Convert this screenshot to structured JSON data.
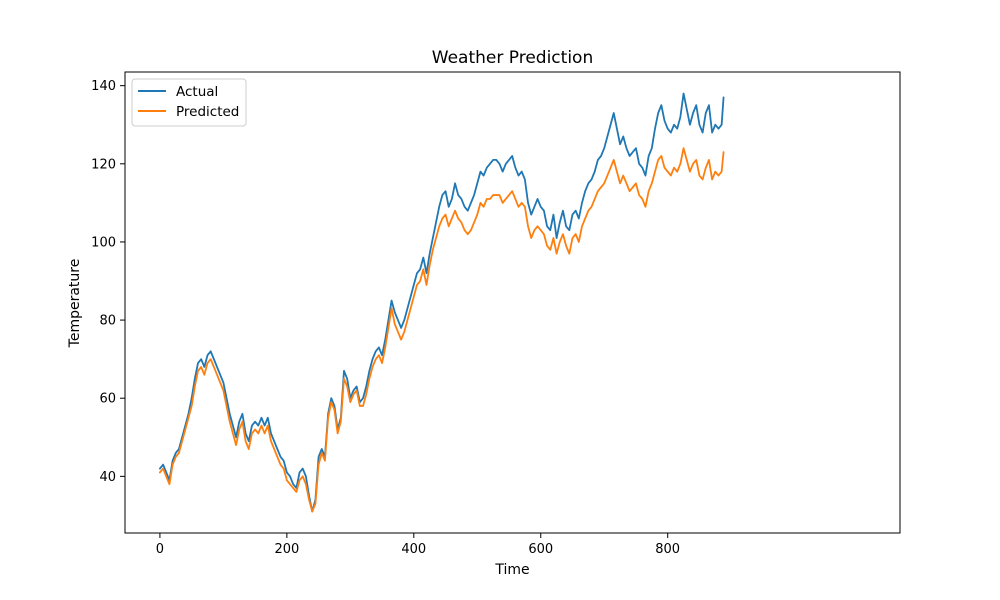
{
  "chart_data": {
    "type": "line",
    "title": "Weather Prediction",
    "xlabel": "Time",
    "ylabel": "Temperature",
    "xlim": [
      -55,
      1166
    ],
    "ylim": [
      25.5,
      143.5
    ],
    "xticks": [
      0,
      200,
      400,
      600,
      800
    ],
    "yticks": [
      40,
      60,
      80,
      100,
      120,
      140
    ],
    "grid": false,
    "legend_position": "top-left",
    "series": [
      {
        "name": "Actual",
        "color": "#1f77b4",
        "x": [
          0,
          5,
          10,
          15,
          20,
          25,
          30,
          35,
          40,
          45,
          50,
          55,
          60,
          65,
          70,
          75,
          80,
          85,
          90,
          95,
          100,
          105,
          110,
          115,
          120,
          125,
          130,
          135,
          140,
          145,
          150,
          155,
          160,
          165,
          170,
          175,
          180,
          185,
          190,
          195,
          200,
          205,
          210,
          215,
          220,
          225,
          230,
          235,
          240,
          245,
          250,
          255,
          260,
          265,
          270,
          275,
          280,
          285,
          290,
          295,
          300,
          305,
          310,
          315,
          320,
          325,
          330,
          335,
          340,
          345,
          350,
          355,
          360,
          365,
          370,
          375,
          380,
          385,
          390,
          395,
          400,
          405,
          410,
          415,
          420,
          425,
          430,
          435,
          440,
          445,
          450,
          455,
          460,
          465,
          470,
          475,
          480,
          485,
          490,
          495,
          500,
          505,
          510,
          515,
          520,
          525,
          530,
          535,
          540,
          545,
          550,
          555,
          560,
          565,
          570,
          575,
          580,
          585,
          590,
          595,
          600,
          605,
          610,
          615,
          620,
          625,
          630,
          635,
          640,
          645,
          650,
          655,
          660,
          665,
          670,
          675,
          680,
          685,
          690,
          695,
          700,
          705,
          710,
          715,
          720,
          725,
          730,
          735,
          740,
          745,
          750,
          755,
          760,
          765,
          770,
          775,
          780,
          785,
          790,
          795,
          800,
          805,
          810,
          815,
          820,
          825,
          830,
          835,
          840,
          845,
          850,
          855,
          860,
          865,
          870,
          875,
          880,
          885,
          888
        ],
        "y": [
          42,
          43,
          41,
          39,
          44,
          46,
          47,
          50,
          53,
          56,
          60,
          65,
          69,
          70,
          68,
          71,
          72,
          70,
          68,
          66,
          64,
          60,
          56,
          53,
          50,
          54,
          56,
          51,
          49,
          53,
          54,
          53,
          55,
          53,
          55,
          51,
          49,
          47,
          45,
          44,
          41,
          40,
          38,
          37,
          41,
          42,
          40,
          35,
          31,
          34,
          45,
          47,
          45,
          56,
          60,
          58,
          52,
          55,
          67,
          65,
          60,
          62,
          63,
          59,
          60,
          63,
          67,
          70,
          72,
          73,
          71,
          75,
          80,
          85,
          82,
          80,
          78,
          80,
          83,
          86,
          89,
          92,
          93,
          96,
          92,
          97,
          101,
          105,
          109,
          112,
          113,
          109,
          111,
          115,
          112,
          111,
          109,
          108,
          110,
          112,
          115,
          118,
          117,
          119,
          120,
          121,
          121,
          120,
          118,
          120,
          121,
          122,
          119,
          117,
          118,
          116,
          110,
          107,
          109,
          111,
          109,
          108,
          104,
          103,
          107,
          101,
          105,
          108,
          104,
          103,
          107,
          108,
          106,
          110,
          113,
          115,
          116,
          118,
          121,
          122,
          124,
          127,
          130,
          133,
          129,
          125,
          127,
          124,
          122,
          123,
          124,
          120,
          119,
          117,
          122,
          124,
          129,
          133,
          135,
          131,
          129,
          128,
          130,
          129,
          132,
          138,
          134,
          130,
          133,
          135,
          130,
          128,
          133,
          135,
          128,
          130,
          129,
          130,
          137
        ]
      },
      {
        "name": "Predicted",
        "color": "#ff7f0e",
        "x": [
          0,
          5,
          10,
          15,
          20,
          25,
          30,
          35,
          40,
          45,
          50,
          55,
          60,
          65,
          70,
          75,
          80,
          85,
          90,
          95,
          100,
          105,
          110,
          115,
          120,
          125,
          130,
          135,
          140,
          145,
          150,
          155,
          160,
          165,
          170,
          175,
          180,
          185,
          190,
          195,
          200,
          205,
          210,
          215,
          220,
          225,
          230,
          235,
          240,
          245,
          250,
          255,
          260,
          265,
          270,
          275,
          280,
          285,
          290,
          295,
          300,
          305,
          310,
          315,
          320,
          325,
          330,
          335,
          340,
          345,
          350,
          355,
          360,
          365,
          370,
          375,
          380,
          385,
          390,
          395,
          400,
          405,
          410,
          415,
          420,
          425,
          430,
          435,
          440,
          445,
          450,
          455,
          460,
          465,
          470,
          475,
          480,
          485,
          490,
          495,
          500,
          505,
          510,
          515,
          520,
          525,
          530,
          535,
          540,
          545,
          550,
          555,
          560,
          565,
          570,
          575,
          580,
          585,
          590,
          595,
          600,
          605,
          610,
          615,
          620,
          625,
          630,
          635,
          640,
          645,
          650,
          655,
          660,
          665,
          670,
          675,
          680,
          685,
          690,
          695,
          700,
          705,
          710,
          715,
          720,
          725,
          730,
          735,
          740,
          745,
          750,
          755,
          760,
          765,
          770,
          775,
          780,
          785,
          790,
          795,
          800,
          805,
          810,
          815,
          820,
          825,
          830,
          835,
          840,
          845,
          850,
          855,
          860,
          865,
          870,
          875,
          880,
          885,
          888
        ],
        "y": [
          41,
          42,
          40,
          38,
          43,
          45,
          46,
          49,
          52,
          55,
          58,
          63,
          67,
          68,
          66,
          69,
          70,
          68,
          66,
          64,
          62,
          58,
          54,
          51,
          48,
          52,
          54,
          49,
          47,
          51,
          52,
          51,
          53,
          51,
          53,
          49,
          47,
          45,
          43,
          42,
          39,
          38,
          37,
          36,
          39,
          40,
          38,
          34,
          31,
          33,
          43,
          46,
          44,
          55,
          59,
          57,
          51,
          54,
          65,
          63,
          59,
          61,
          62,
          58,
          58,
          61,
          65,
          68,
          70,
          71,
          69,
          73,
          78,
          83,
          79,
          77,
          75,
          77,
          80,
          83,
          86,
          89,
          90,
          93,
          89,
          94,
          98,
          101,
          104,
          106,
          107,
          104,
          106,
          108,
          106,
          105,
          103,
          102,
          103,
          105,
          107,
          110,
          109,
          111,
          111,
          112,
          112,
          112,
          110,
          111,
          112,
          113,
          111,
          109,
          110,
          109,
          104,
          101,
          103,
          104,
          103,
          102,
          99,
          98,
          101,
          97,
          100,
          102,
          99,
          97,
          101,
          102,
          100,
          104,
          106,
          108,
          109,
          111,
          113,
          114,
          115,
          117,
          119,
          121,
          118,
          115,
          117,
          115,
          113,
          114,
          115,
          112,
          111,
          109,
          113,
          115,
          118,
          121,
          122,
          119,
          118,
          117,
          119,
          118,
          120,
          124,
          121,
          118,
          120,
          121,
          117,
          116,
          119,
          121,
          116,
          118,
          117,
          118,
          123
        ]
      }
    ]
  }
}
